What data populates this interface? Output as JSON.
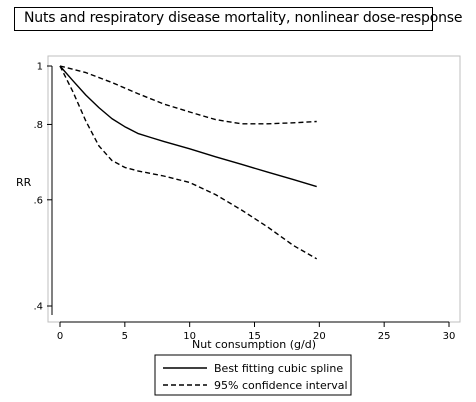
{
  "title": "Nuts and respiratory disease mortality, nonlinear dose-response",
  "chart_data": {
    "type": "line",
    "title": "Nuts and respiratory disease mortality, nonlinear dose-response",
    "xlabel": "Nut consumption (g/d)",
    "ylabel": "RR",
    "xlim": [
      0,
      30
    ],
    "ylim": [
      0.4,
      1.0
    ],
    "y_scale": "log",
    "x_ticks": [
      "0",
      "5",
      "10",
      "15",
      "20",
      "25",
      "30"
    ],
    "y_ticks": [
      {
        "value": 1.0,
        "label": "1"
      },
      {
        "value": 0.8,
        "label": ".8"
      },
      {
        "value": 0.6,
        "label": ".6"
      },
      {
        "value": 0.4,
        "label": ".4"
      }
    ],
    "grid": false,
    "legend_position": "bottom-center",
    "series": [
      {
        "name": "Best fitting cubic spline",
        "style": "solid",
        "x": [
          0,
          1,
          2,
          3,
          4,
          5,
          6,
          7,
          8,
          10,
          12,
          14,
          16,
          18,
          19.8
        ],
        "y": [
          1.0,
          0.945,
          0.895,
          0.853,
          0.818,
          0.793,
          0.773,
          0.761,
          0.75,
          0.729,
          0.707,
          0.687,
          0.667,
          0.648,
          0.631
        ]
      },
      {
        "name": "95% confidence interval",
        "style": "dashed",
        "role": "upper",
        "x": [
          0,
          2,
          4,
          6,
          8,
          10,
          12,
          14,
          16,
          18,
          19.8
        ],
        "y": [
          1.0,
          0.975,
          0.939,
          0.9,
          0.865,
          0.839,
          0.815,
          0.802,
          0.802,
          0.805,
          0.809
        ]
      },
      {
        "name": "95% confidence interval",
        "style": "dashed",
        "role": "lower",
        "x": [
          0,
          1,
          2,
          3,
          4,
          5,
          6,
          8,
          10,
          12,
          14,
          16,
          18,
          19.8
        ],
        "y": [
          1.0,
          0.906,
          0.81,
          0.737,
          0.697,
          0.679,
          0.67,
          0.657,
          0.641,
          0.612,
          0.577,
          0.541,
          0.504,
          0.479
        ]
      }
    ],
    "legend": [
      {
        "label": "Best fitting cubic spline",
        "style": "solid"
      },
      {
        "label": "95% confidence interval",
        "style": "dashed"
      }
    ]
  }
}
